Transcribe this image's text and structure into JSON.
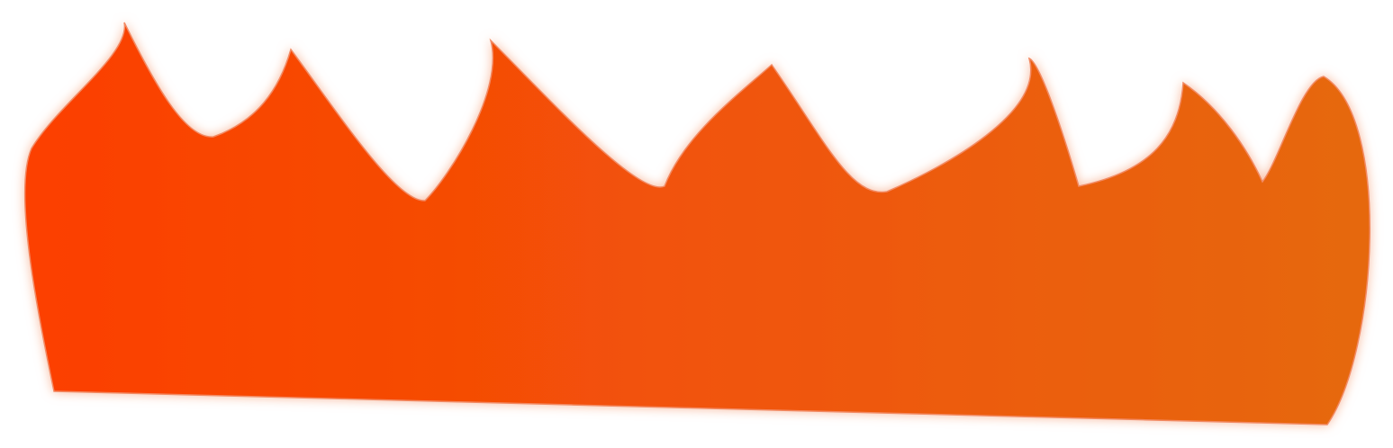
{
  "artwork": {
    "shape": "flame-banner",
    "gradient_start": "#FC3F02",
    "gradient_end": "#E6680E",
    "glow_color": "#F7B394",
    "stroke_color": "#F28A64",
    "background": "#FFFFFF"
  }
}
